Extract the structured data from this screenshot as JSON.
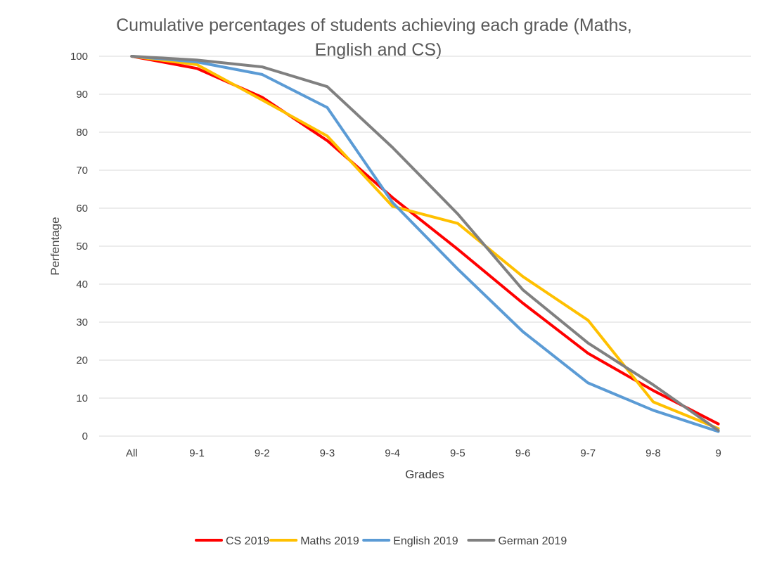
{
  "chart_data": {
    "type": "line",
    "title_lines": [
      "Cumulative percentages of students achieving each grade (Maths,",
      "English and CS)"
    ],
    "xlabel": "Grades",
    "ylabel": "Perfentage",
    "categories": [
      "All",
      "9-1",
      "9-2",
      "9-3",
      "9-4",
      "9-5",
      "9-6",
      "9-7",
      "9-8",
      "9"
    ],
    "ylim": [
      0,
      100
    ],
    "yticks": [
      0,
      10,
      20,
      30,
      40,
      50,
      60,
      70,
      80,
      90,
      100
    ],
    "ytick_labels": [
      "0",
      "10",
      "20",
      "30",
      "40",
      "50",
      "60",
      "70",
      "80",
      "90",
      "100"
    ],
    "grid": true,
    "legend_position": "bottom",
    "series": [
      {
        "name": "CS 2019",
        "color": "#ff0000",
        "values": [
          100,
          96.8,
          89.2,
          77.8,
          62.8,
          49.2,
          35.0,
          21.8,
          12.0,
          3.2
        ]
      },
      {
        "name": "Maths 2019",
        "color": "#ffc000",
        "values": [
          100,
          97.8,
          88.5,
          79.0,
          60.5,
          56.0,
          42.0,
          30.5,
          9.0,
          2.0
        ]
      },
      {
        "name": "English 2019",
        "color": "#5b9bd5",
        "values": [
          100,
          98.5,
          95.2,
          86.5,
          61.5,
          44.0,
          27.5,
          14.0,
          6.8,
          1.2
        ]
      },
      {
        "name": "German 2019",
        "color": "#808080",
        "values": [
          100,
          99.0,
          97.2,
          92.0,
          76.0,
          58.5,
          38.5,
          24.5,
          13.5,
          1.5
        ]
      }
    ]
  }
}
